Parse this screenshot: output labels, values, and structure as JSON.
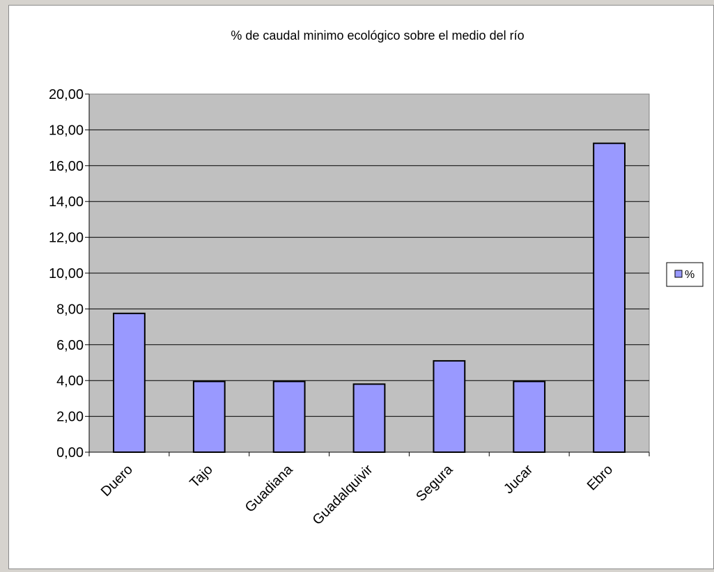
{
  "chart_data": {
    "type": "bar",
    "title": "% de caudal minimo  ecológico sobre el medio del río",
    "xlabel": "",
    "ylabel": "",
    "categories": [
      "Duero",
      "Tajo",
      "Guadiana",
      "Guadalquivir",
      "Segura",
      "Jucar",
      "Ebro"
    ],
    "series": [
      {
        "name": "%",
        "values": [
          7.75,
          3.95,
          3.95,
          3.8,
          5.1,
          3.95,
          17.25
        ]
      }
    ],
    "ylim": [
      0,
      20
    ],
    "yticks": [
      "0,00",
      "2,00",
      "4,00",
      "6,00",
      "8,00",
      "10,00",
      "12,00",
      "14,00",
      "16,00",
      "18,00",
      "20,00"
    ],
    "grid": true,
    "legend_position": "right",
    "colors": {
      "bar_fill": "#9999ff",
      "plot_background": "#c0c0c0",
      "frame_background": "#d6d3ce"
    }
  }
}
